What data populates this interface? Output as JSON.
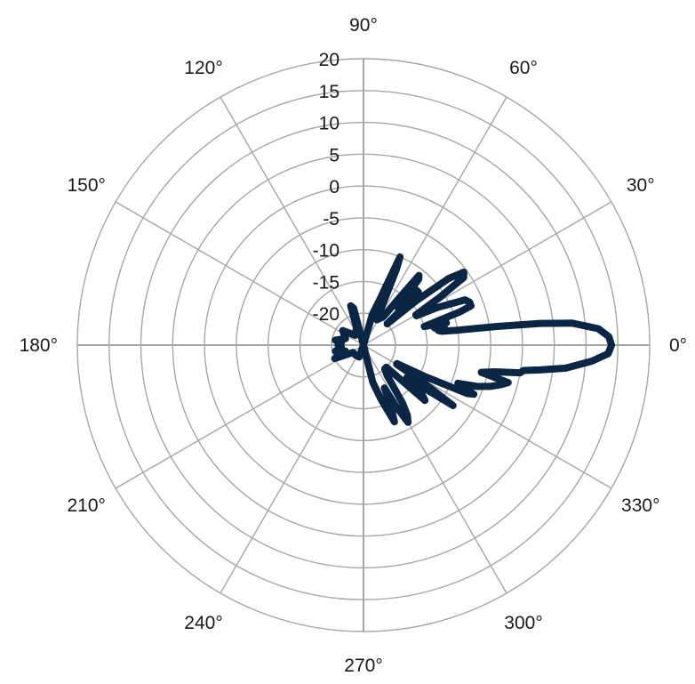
{
  "chart_data": {
    "type": "line",
    "polar": true,
    "title": "",
    "angle_unit": "deg",
    "angle_tick_labels": [
      "0°",
      "30°",
      "60°",
      "90°",
      "120°",
      "150°",
      "180°",
      "210°",
      "240°",
      "270°",
      "300°",
      "330°"
    ],
    "angle_ticks": [
      0,
      30,
      60,
      90,
      120,
      150,
      180,
      210,
      240,
      270,
      300,
      330
    ],
    "radial_range": [
      -25,
      20
    ],
    "radial_ticks": [
      20,
      15,
      10,
      5,
      0,
      -5,
      -10,
      -15,
      -20
    ],
    "radial_tick_labels": [
      "20",
      "15",
      "10",
      "5",
      "0",
      "-5",
      "-10",
      "-15",
      "-20"
    ],
    "grid": true,
    "series": [
      {
        "color": "#0b2545",
        "points": [
          [
            0,
            14
          ],
          [
            2,
            13.6
          ],
          [
            4,
            12
          ],
          [
            6,
            8
          ],
          [
            7,
            3
          ],
          [
            8,
            -4
          ],
          [
            9,
            -10
          ],
          [
            10,
            -12.5
          ],
          [
            11,
            -13
          ],
          [
            12,
            -12
          ],
          [
            13.5,
            -13.5
          ],
          [
            15,
            -11.5
          ],
          [
            17,
            -15
          ],
          [
            19,
            -9
          ],
          [
            20,
            -7
          ],
          [
            22,
            -7
          ],
          [
            24,
            -7.5
          ],
          [
            27,
            -12
          ],
          [
            29,
            -15.5
          ],
          [
            30,
            -15.5
          ],
          [
            32,
            -11
          ],
          [
            34,
            -6
          ],
          [
            36,
            -5.5
          ],
          [
            38,
            -8
          ],
          [
            40,
            -14
          ],
          [
            42,
            -20
          ],
          [
            44,
            -13
          ],
          [
            46,
            -13
          ],
          [
            48,
            -17
          ],
          [
            50,
            -11.5
          ],
          [
            51.5,
            -11
          ],
          [
            53,
            -16
          ],
          [
            55,
            -19.5
          ],
          [
            58,
            -20
          ],
          [
            62,
            -20.5
          ],
          [
            65,
            -17.5
          ],
          [
            66.5,
            -12
          ],
          [
            67.5,
            -10
          ],
          [
            69,
            -15
          ],
          [
            70,
            -17
          ],
          [
            74,
            -20
          ],
          [
            90,
            -25
          ],
          [
            105,
            -19
          ],
          [
            108,
            -18.5
          ],
          [
            112,
            -22
          ],
          [
            130,
            -23
          ],
          [
            145,
            -21
          ],
          [
            160,
            -22
          ],
          [
            170,
            -20.5
          ],
          [
            175,
            -21.5
          ],
          [
            180,
            -21
          ],
          [
            185,
            -21.5
          ],
          [
            192,
            -20.5
          ],
          [
            198,
            -22
          ],
          [
            205,
            -20
          ],
          [
            215,
            -23
          ],
          [
            230,
            -23
          ],
          [
            250,
            -23
          ],
          [
            270,
            -25
          ],
          [
            284,
            -19
          ],
          [
            288,
            -16
          ],
          [
            292,
            -12
          ],
          [
            294,
            -14.5
          ],
          [
            296,
            -17.5
          ],
          [
            298,
            -14
          ],
          [
            300,
            -11
          ],
          [
            302,
            -12
          ],
          [
            304,
            -14
          ],
          [
            308,
            -19
          ],
          [
            312,
            -20
          ],
          [
            316,
            -20
          ],
          [
            318,
            -12
          ],
          [
            320,
            -13
          ],
          [
            323,
            -16.5
          ],
          [
            326,
            -8
          ],
          [
            328,
            -14
          ],
          [
            330,
            -19
          ],
          [
            331,
            -19
          ],
          [
            333,
            -14
          ],
          [
            335,
            -7
          ],
          [
            336,
            -6
          ],
          [
            338,
            -9
          ],
          [
            340,
            -6
          ],
          [
            342,
            -4
          ],
          [
            344,
            -2.5
          ],
          [
            345.5,
            -1.5
          ],
          [
            347,
            -6
          ],
          [
            348.5,
            -4
          ],
          [
            350,
            0
          ],
          [
            351,
            0.5
          ],
          [
            352,
            3
          ],
          [
            353.5,
            7
          ],
          [
            356,
            11
          ],
          [
            358,
            13.5
          ],
          [
            360,
            14
          ]
        ]
      }
    ]
  }
}
